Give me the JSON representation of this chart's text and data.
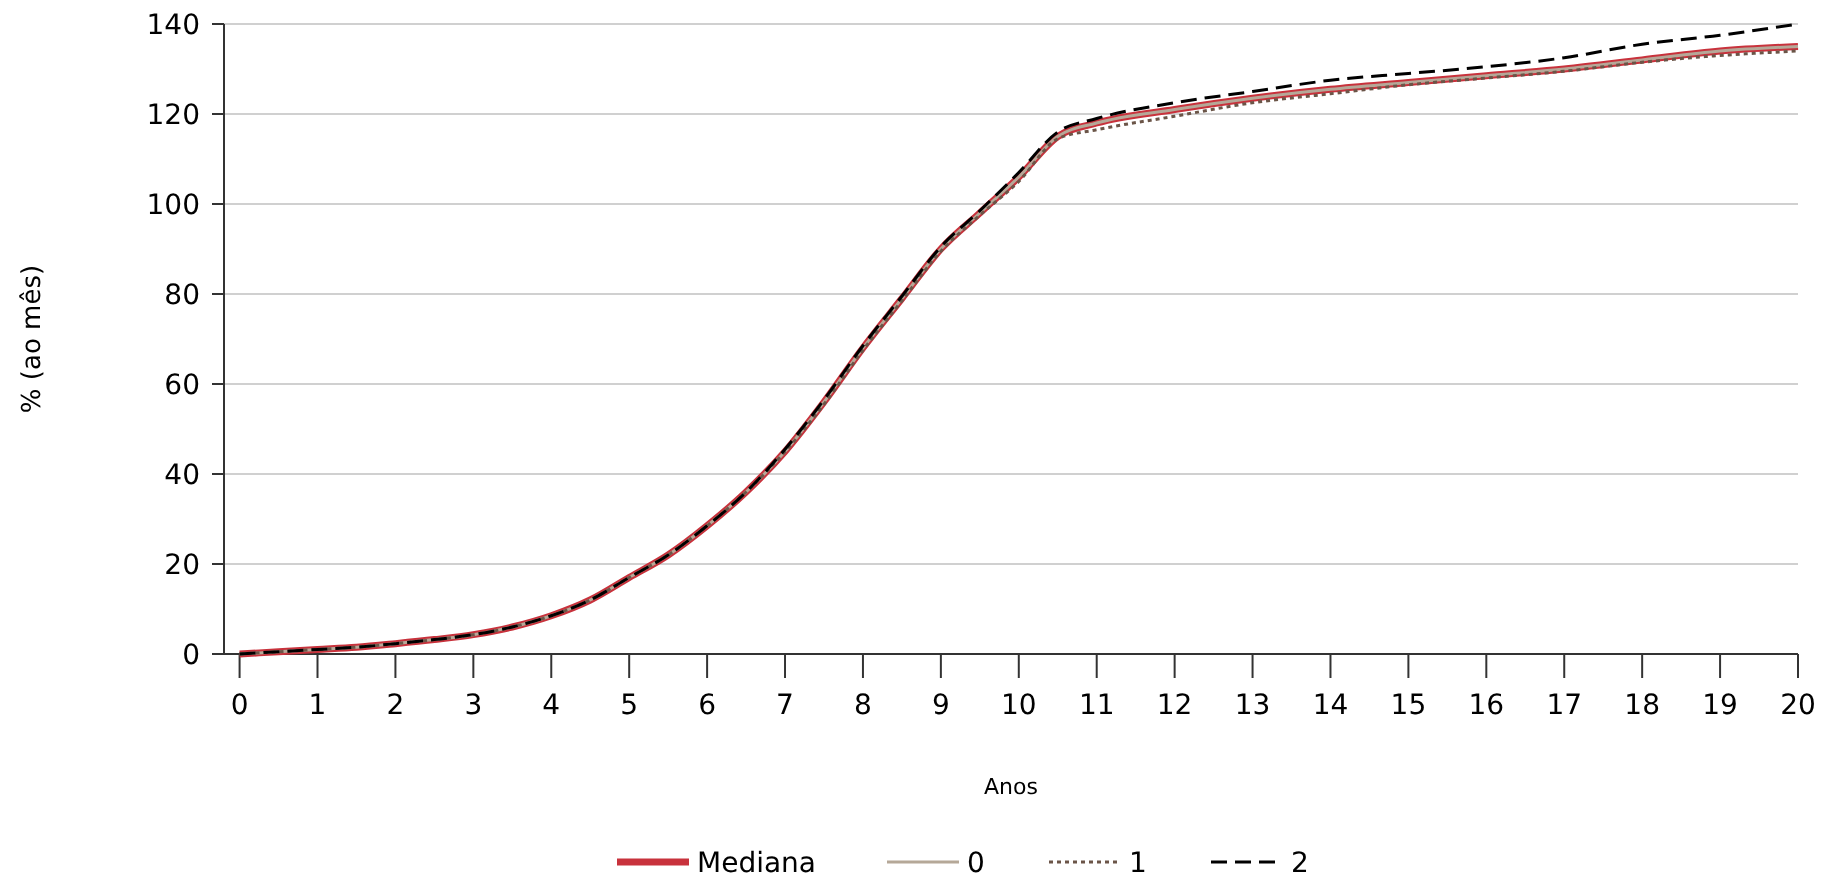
{
  "chart_data": {
    "type": "line",
    "xlabel": "Anos",
    "ylabel": "% (ao mês)",
    "x": [
      0,
      0.5,
      1,
      1.5,
      2,
      2.5,
      3,
      3.5,
      4,
      4.5,
      5,
      5.5,
      6,
      6.5,
      7,
      7.5,
      8,
      8.5,
      9,
      9.5,
      10,
      10.5,
      11,
      12,
      13,
      14,
      15,
      16,
      17,
      18,
      19,
      20
    ],
    "xlim": [
      -0.2,
      20
    ],
    "xticks": [
      0,
      1,
      2,
      3,
      4,
      5,
      6,
      7,
      8,
      9,
      10,
      11,
      12,
      13,
      14,
      15,
      16,
      17,
      18,
      19,
      20
    ],
    "ylim": [
      0,
      140
    ],
    "yticks": [
      0,
      20,
      40,
      60,
      80,
      100,
      120,
      140
    ],
    "grid": "y",
    "legend": "bottom",
    "series": [
      {
        "name": "Mediana",
        "color": "#c8323c",
        "line_style": "solid",
        "values": [
          0,
          0.5,
          1,
          1.5,
          2.3,
          3.2,
          4.3,
          6,
          8.5,
          12,
          17,
          22,
          28.5,
          36,
          45,
          56,
          68,
          79,
          90,
          98,
          106,
          115,
          118,
          121,
          123.5,
          125.5,
          127,
          128.5,
          130,
          132,
          134,
          135
        ]
      },
      {
        "name": "0",
        "color": "#b5a898",
        "line_style": "solid",
        "values": [
          0,
          0.5,
          1,
          1.5,
          2.3,
          3.2,
          4.3,
          6,
          8.5,
          12,
          17,
          22,
          28.5,
          36,
          45,
          56,
          68,
          79,
          90,
          98,
          106,
          115,
          118,
          121,
          123.5,
          125.5,
          127,
          128.5,
          130,
          132,
          134,
          135
        ]
      },
      {
        "name": "1",
        "color": "#6b5548",
        "line_style": "dotted",
        "values": [
          0,
          0.5,
          1,
          1.5,
          2.3,
          3.2,
          4.3,
          6,
          8.5,
          12,
          17,
          22,
          28.5,
          36,
          45,
          55.5,
          67.5,
          78.5,
          89.5,
          97.5,
          105,
          114.5,
          116.5,
          119.5,
          122.5,
          124.5,
          126.5,
          128,
          129.5,
          131.5,
          133,
          134
        ]
      },
      {
        "name": "2",
        "color": "#000000",
        "line_style": "dashed",
        "values": [
          0,
          0.5,
          1,
          1.5,
          2.3,
          3.2,
          4.3,
          6,
          8.5,
          12,
          17,
          22,
          28.5,
          36,
          45.5,
          56.5,
          68.5,
          79.5,
          90.5,
          98.5,
          107,
          116,
          119,
          122.5,
          125,
          127.5,
          129,
          130.5,
          132.5,
          135.5,
          137.5,
          140
        ]
      }
    ]
  }
}
